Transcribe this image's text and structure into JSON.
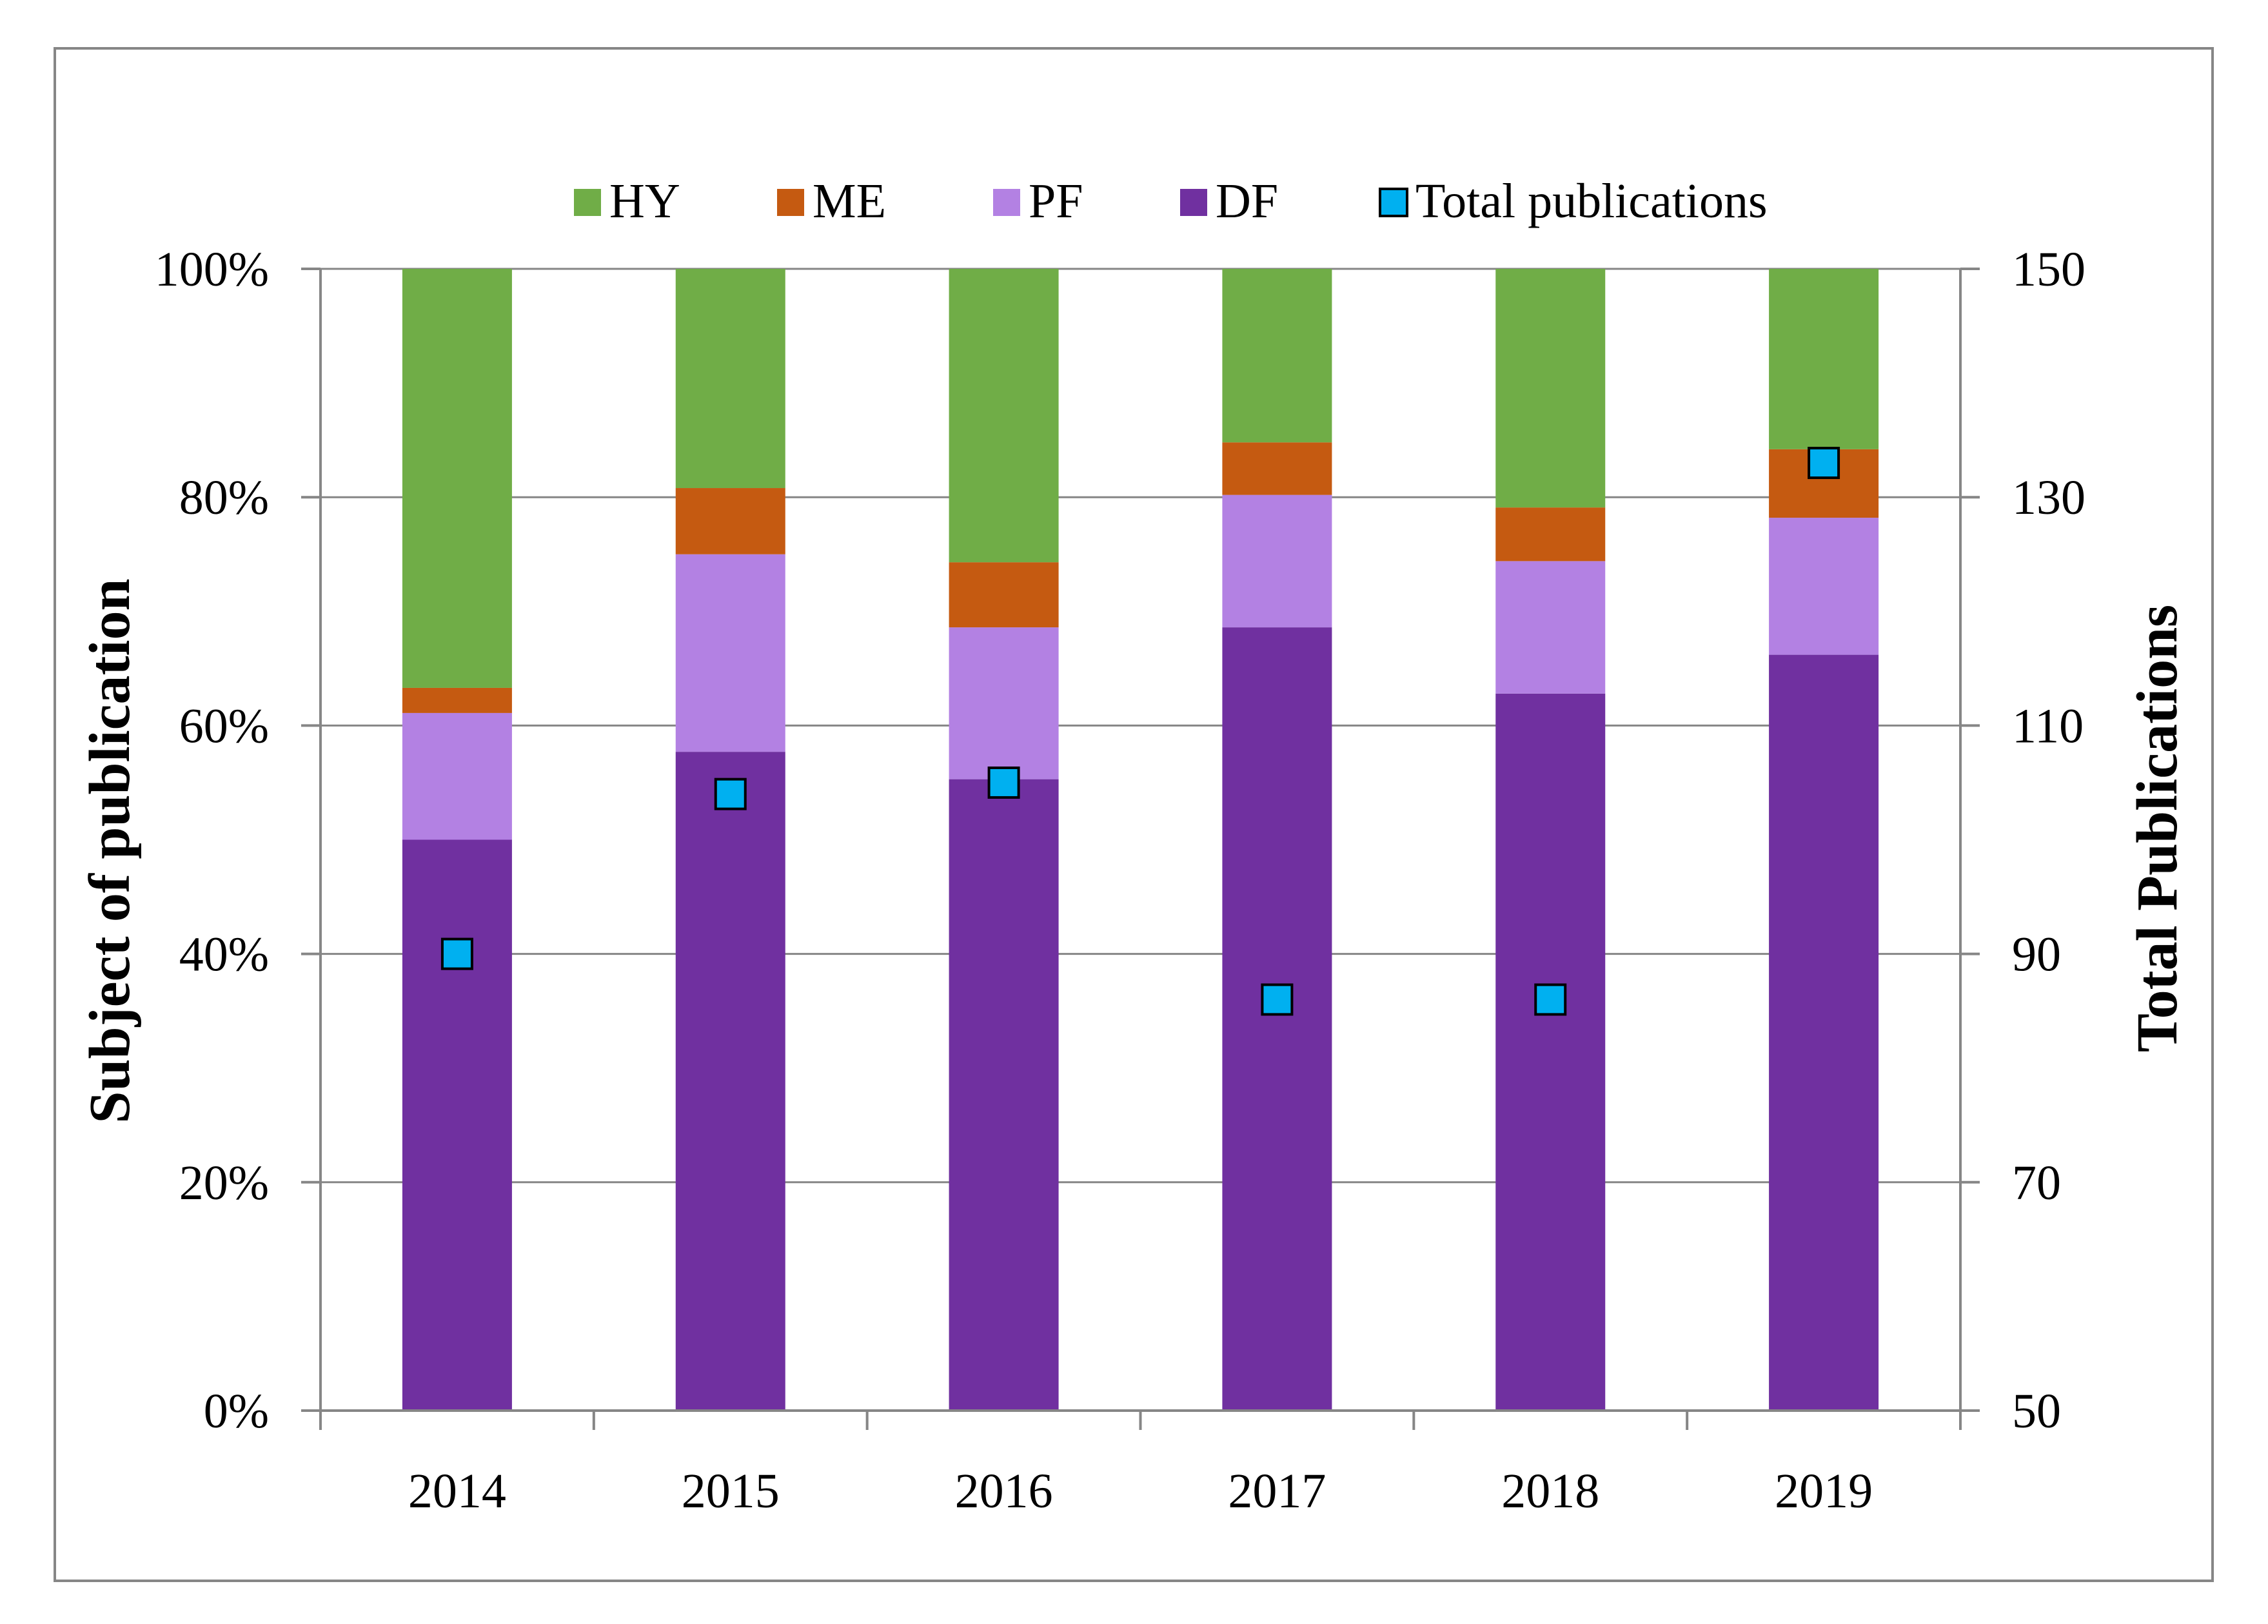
{
  "chart_data": {
    "type": "bar",
    "stacked": true,
    "percent_stacked": true,
    "categories": [
      "2014",
      "2015",
      "2016",
      "2017",
      "2018",
      "2019"
    ],
    "series": [
      {
        "name": "DF",
        "color": "#7030a0",
        "values": [
          50.0,
          57.7,
          55.3,
          68.6,
          62.8,
          66.2
        ]
      },
      {
        "name": "PF",
        "color": "#b381e3",
        "values": [
          11.1,
          17.3,
          13.3,
          11.6,
          11.6,
          12.0
        ]
      },
      {
        "name": "ME",
        "color": "#c55a11",
        "values": [
          2.2,
          5.8,
          5.7,
          4.6,
          4.7,
          6.0
        ]
      },
      {
        "name": "HY",
        "color": "#70ad47",
        "values": [
          36.7,
          19.2,
          25.7,
          15.2,
          20.9,
          15.8
        ]
      }
    ],
    "overlay": {
      "type": "scatter",
      "name": "Total publications",
      "axis": "right",
      "color": "#00b0f0",
      "marker": "square",
      "values": [
        90,
        104,
        105,
        86,
        86,
        133
      ]
    },
    "y_left": {
      "label": "Subject of publication",
      "ylim": [
        0,
        100
      ],
      "ticks": [
        "0%",
        "20%",
        "40%",
        "60%",
        "80%",
        "100%"
      ]
    },
    "y_right": {
      "label": "Total Publications",
      "ylim": [
        50,
        150
      ],
      "ticks": [
        "50",
        "70",
        "90",
        "110",
        "130",
        "150"
      ]
    },
    "xlabel": "",
    "grid": true,
    "legend": {
      "position": "top",
      "order": [
        "HY",
        "ME",
        "PF",
        "DF",
        "Total publications"
      ]
    }
  }
}
